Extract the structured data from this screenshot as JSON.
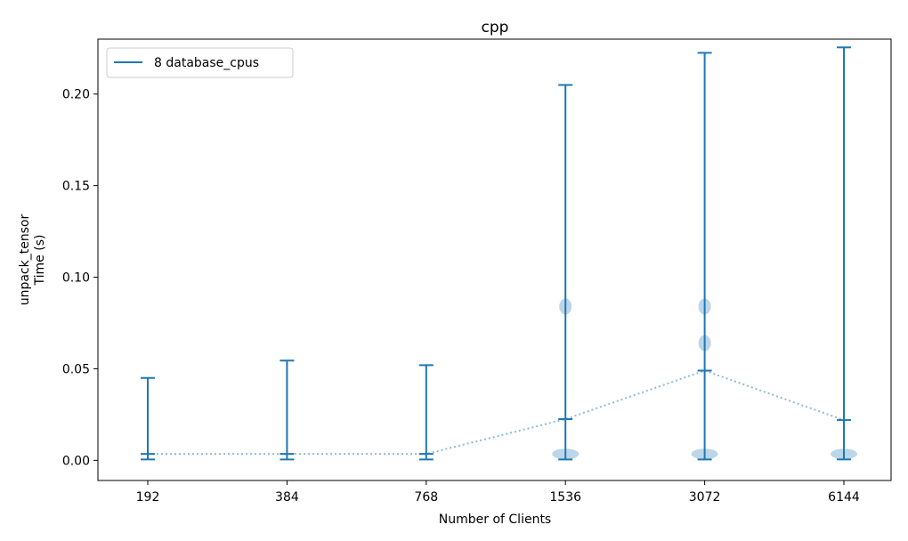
{
  "chart_data": {
    "type": "violin",
    "title": "cpp",
    "xlabel": "Number of Clients",
    "ylabel_lines": [
      "unpack_tensor",
      "Time (s)"
    ],
    "categories": [
      "192",
      "384",
      "768",
      "1536",
      "3072",
      "6144"
    ],
    "ylim": [
      -0.011,
      0.23
    ],
    "yticks": [
      0.0,
      0.05,
      0.1,
      0.15,
      0.2
    ],
    "ytick_labels": [
      "0.00",
      "0.05",
      "0.10",
      "0.15",
      "0.20"
    ],
    "grid": false,
    "legend": {
      "location": "upper-left",
      "entries": [
        "8 database_cpus"
      ]
    },
    "series": [
      {
        "name": "8 database_cpus",
        "color": "#1f77b4",
        "min": [
          0.0005,
          0.0005,
          0.0005,
          0.0005,
          0.0005,
          0.0005
        ],
        "max": [
          0.045,
          0.0545,
          0.052,
          0.205,
          0.2225,
          0.2255
        ],
        "mean": [
          0.0035,
          0.0035,
          0.0035,
          0.0225,
          0.049,
          0.022
        ],
        "density_clusters": [
          [],
          [],
          [],
          [
            0.002,
            0.084
          ],
          [
            0.002,
            0.064,
            0.084
          ],
          [
            0.002
          ]
        ]
      }
    ]
  }
}
